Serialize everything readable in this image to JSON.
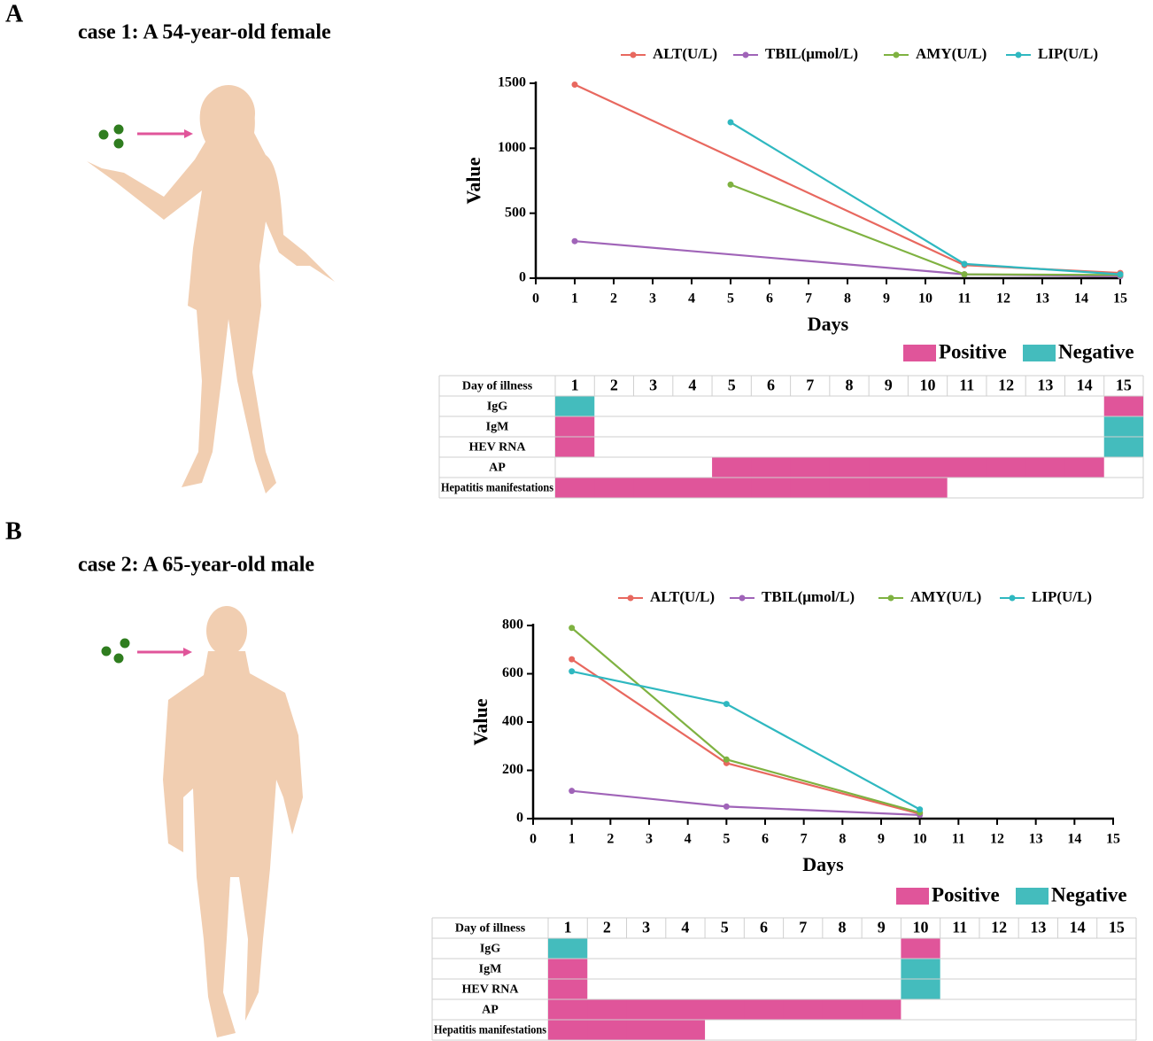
{
  "chart_data": [
    {
      "type": "line",
      "xlabel": "Days",
      "ylabel": "Value",
      "xlim": [
        0,
        15
      ],
      "xticks": [
        0,
        1,
        2,
        3,
        4,
        5,
        6,
        7,
        8,
        9,
        10,
        11,
        12,
        13,
        14,
        15
      ],
      "ylim": [
        0,
        1500
      ],
      "yticks": [
        0,
        500,
        1000,
        1500
      ],
      "series": [
        {
          "name": "ALT(U/L)",
          "color": "#e8685f",
          "x": [
            1,
            11,
            15
          ],
          "values": [
            1490,
            100,
            40
          ]
        },
        {
          "name": "TBIL(μmol/L)",
          "color": "#a064b8",
          "x": [
            1,
            11,
            15
          ],
          "values": [
            285,
            30,
            15
          ]
        },
        {
          "name": "AMY(U/L)",
          "color": "#7fb241",
          "x": [
            5,
            11,
            15
          ],
          "values": [
            720,
            30,
            25
          ]
        },
        {
          "name": "LIP(U/L)",
          "color": "#2fb8c0",
          "x": [
            5,
            11,
            15
          ],
          "values": [
            1200,
            110,
            30
          ]
        }
      ]
    },
    {
      "type": "line",
      "xlabel": "Days",
      "ylabel": "Value",
      "xlim": [
        0,
        15
      ],
      "xticks": [
        0,
        1,
        2,
        3,
        4,
        5,
        6,
        7,
        8,
        9,
        10,
        11,
        12,
        13,
        14,
        15
      ],
      "ylim": [
        0,
        800
      ],
      "yticks": [
        0,
        200,
        400,
        600,
        800
      ],
      "series": [
        {
          "name": "ALT(U/L)",
          "color": "#e8685f",
          "x": [
            1,
            5,
            10
          ],
          "values": [
            660,
            230,
            20
          ]
        },
        {
          "name": "TBIL(μmol/L)",
          "color": "#a064b8",
          "x": [
            1,
            5,
            10
          ],
          "values": [
            115,
            50,
            15
          ]
        },
        {
          "name": "AMY(U/L)",
          "color": "#7fb241",
          "x": [
            1,
            5,
            10
          ],
          "values": [
            790,
            245,
            25
          ]
        },
        {
          "name": "LIP(U/L)",
          "color": "#2fb8c0",
          "x": [
            1,
            5,
            10
          ],
          "values": [
            610,
            475,
            38
          ]
        }
      ]
    }
  ],
  "panels": [
    {
      "label": "A",
      "title": "case 1: A 54-year-old female",
      "table": {
        "header": "Day of illness",
        "days": [
          1,
          2,
          3,
          4,
          5,
          6,
          7,
          8,
          9,
          10,
          11,
          12,
          13,
          14,
          15
        ],
        "legend": [
          {
            "name": "Positive",
            "color": "#e0559a"
          },
          {
            "name": "Negative",
            "color": "#44bcbd"
          }
        ],
        "rows": [
          {
            "name": "IgG",
            "cells": [
              1,
              null,
              null,
              null,
              null,
              null,
              null,
              null,
              null,
              null,
              null,
              null,
              null,
              null,
              0
            ]
          },
          {
            "name": "IgM",
            "cells": [
              0,
              null,
              null,
              null,
              null,
              null,
              null,
              null,
              null,
              null,
              null,
              null,
              null,
              null,
              1
            ]
          },
          {
            "name": "HEV RNA",
            "cells": [
              0,
              null,
              null,
              null,
              null,
              null,
              null,
              null,
              null,
              null,
              null,
              null,
              null,
              null,
              1
            ]
          },
          {
            "name": "AP",
            "cells": [
              null,
              null,
              null,
              null,
              0,
              0,
              0,
              0,
              0,
              0,
              0,
              0,
              0,
              0,
              null
            ]
          },
          {
            "name": "Hepatitis manifestations",
            "cells": [
              0,
              0,
              0,
              0,
              0,
              0,
              0,
              0,
              0,
              0,
              null,
              null,
              null,
              null,
              null
            ]
          }
        ]
      }
    },
    {
      "label": "B",
      "title": "case 2: A 65-year-old male",
      "table": {
        "header": "Day of illness",
        "days": [
          1,
          2,
          3,
          4,
          5,
          6,
          7,
          8,
          9,
          10,
          11,
          12,
          13,
          14,
          15
        ],
        "legend": [
          {
            "name": "Positive",
            "color": "#e0559a"
          },
          {
            "name": "Negative",
            "color": "#44bcbd"
          }
        ],
        "rows": [
          {
            "name": "IgG",
            "cells": [
              1,
              null,
              null,
              null,
              null,
              null,
              null,
              null,
              null,
              0,
              null,
              null,
              null,
              null,
              null
            ]
          },
          {
            "name": "IgM",
            "cells": [
              0,
              null,
              null,
              null,
              null,
              null,
              null,
              null,
              null,
              1,
              null,
              null,
              null,
              null,
              null
            ]
          },
          {
            "name": "HEV RNA",
            "cells": [
              0,
              null,
              null,
              null,
              null,
              null,
              null,
              null,
              null,
              1,
              null,
              null,
              null,
              null,
              null
            ]
          },
          {
            "name": "AP",
            "cells": [
              0,
              0,
              0,
              0,
              0,
              0,
              0,
              0,
              0,
              null,
              null,
              null,
              null,
              null,
              null
            ]
          },
          {
            "name": "Hepatitis manifestations",
            "cells": [
              0,
              0,
              0,
              0,
              null,
              null,
              null,
              null,
              null,
              null,
              null,
              null,
              null,
              null,
              null
            ]
          }
        ]
      }
    }
  ]
}
